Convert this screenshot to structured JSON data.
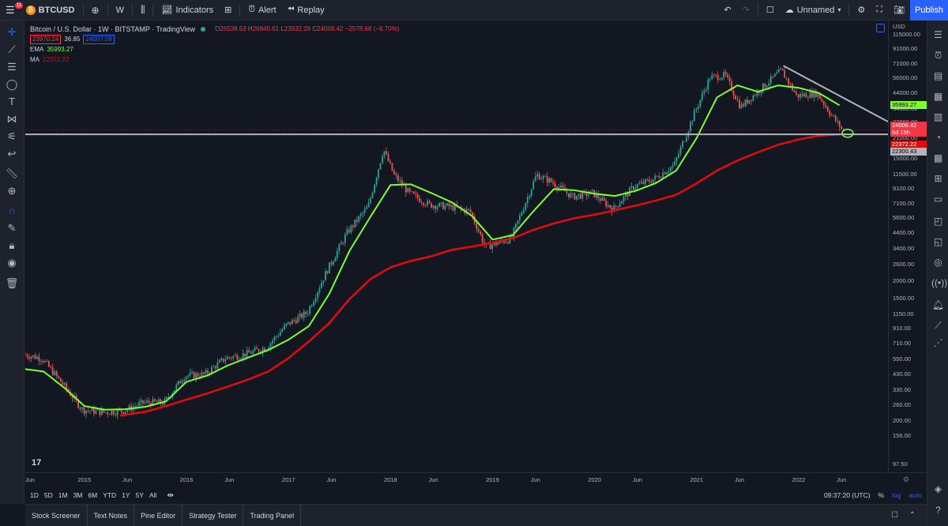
{
  "toolbar": {
    "notification_count": "11",
    "symbol": "BTCUSD",
    "interval": "W",
    "indicators": "Indicators",
    "alert": "Alert",
    "replay": "Replay",
    "layout_name": "Unnamed",
    "publish": "Publish"
  },
  "legend": {
    "title": "Bitcoin / U.S. Dollar · 1W · BITSTAMP · TradingView",
    "o_label": "O",
    "o_val": "26538.63",
    "h_label": "H",
    "h_val": "26845.61",
    "l_label": "L",
    "l_val": "23932.28",
    "c_label": "C",
    "c_val": "24006.42",
    "change": "−2578.68 (−9.70%)",
    "bid": "23970.24",
    "spread": "36.85",
    "ask": "24007.09",
    "ema_label": "EMA",
    "ema_val": "35993.27",
    "ma_label": "MA",
    "ma_val": "22372.22"
  },
  "price_scale": {
    "currency": "USD",
    "ticks": [
      "115000.00",
      "91000.00",
      "71000.00",
      "56000.00",
      "44000.00",
      "34000.00",
      "27000.00",
      "21000.00",
      "15000.00",
      "11500.00",
      "9100.00",
      "7100.00",
      "5600.00",
      "4400.00",
      "3400.00",
      "2600.00",
      "2000.00",
      "1500.00",
      "1150.00",
      "910.00",
      "710.00",
      "550.00",
      "430.00",
      "330.00",
      "260.00",
      "200.00",
      "156.00",
      "97.50"
    ],
    "ema_tag": "35993.27",
    "price_tag": "24006.42",
    "countdown": "6d 15h",
    "ma_tag": "22372.22",
    "support_tag": "22300.43"
  },
  "time_scale": {
    "ticks": [
      "Jun",
      "2015",
      "Jun",
      "2016",
      "Jun",
      "2017",
      "Jun",
      "2018",
      "Jun",
      "2019",
      "Jun",
      "2020",
      "Jun",
      "2021",
      "Jun",
      "2022",
      "Jun"
    ]
  },
  "range_bar": {
    "ranges": [
      "1D",
      "5D",
      "1M",
      "3M",
      "6M",
      "YTD",
      "1Y",
      "5Y",
      "All"
    ],
    "clock": "09:37:20 (UTC)",
    "percent": "%",
    "log": "log",
    "auto": "auto"
  },
  "bottom_tabs": [
    "Stock Screener",
    "Text Notes",
    "Pine Editor",
    "Strategy Tester",
    "Trading Panel"
  ],
  "colors": {
    "background": "#131722",
    "up": "#26a69a",
    "down": "#ef5350",
    "ema": "#7cff2f",
    "ma": "#e00b0b",
    "trendline": "#b2b5be",
    "accent": "#2962ff"
  },
  "chart_data": {
    "type": "candlestick",
    "scale": "log",
    "ylim": [
      80,
      140000
    ],
    "series": [
      {
        "name": "EMA",
        "values": [
          [
            2014.4,
            470
          ],
          [
            2014.6,
            450
          ],
          [
            2014.8,
            345
          ],
          [
            2015.0,
            255
          ],
          [
            2015.2,
            240
          ],
          [
            2015.4,
            242
          ],
          [
            2015.6,
            252
          ],
          [
            2015.8,
            275
          ],
          [
            2016.0,
            380
          ],
          [
            2016.2,
            420
          ],
          [
            2016.4,
            495
          ],
          [
            2016.6,
            565
          ],
          [
            2016.8,
            640
          ],
          [
            2017.0,
            760
          ],
          [
            2017.2,
            950
          ],
          [
            2017.4,
            1620
          ],
          [
            2017.6,
            3300
          ],
          [
            2017.8,
            5700
          ],
          [
            2018.0,
            9700
          ],
          [
            2018.2,
            9800
          ],
          [
            2018.4,
            8500
          ],
          [
            2018.6,
            7300
          ],
          [
            2018.8,
            5800
          ],
          [
            2019.0,
            3950
          ],
          [
            2019.2,
            4250
          ],
          [
            2019.4,
            6300
          ],
          [
            2019.6,
            9050
          ],
          [
            2019.8,
            8900
          ],
          [
            2020.0,
            8400
          ],
          [
            2020.2,
            8100
          ],
          [
            2020.4,
            8800
          ],
          [
            2020.6,
            10000
          ],
          [
            2020.8,
            12300
          ],
          [
            2021.0,
            21000
          ],
          [
            2021.2,
            41000
          ],
          [
            2021.4,
            50000
          ],
          [
            2021.6,
            45000
          ],
          [
            2021.8,
            50000
          ],
          [
            2022.0,
            48000
          ],
          [
            2022.2,
            44000
          ],
          [
            2022.4,
            36000
          ]
        ]
      },
      {
        "name": "MA",
        "values": [
          [
            2015.35,
            218
          ],
          [
            2015.6,
            232
          ],
          [
            2015.8,
            255
          ],
          [
            2016.0,
            283
          ],
          [
            2016.2,
            313
          ],
          [
            2016.4,
            350
          ],
          [
            2016.6,
            393
          ],
          [
            2016.8,
            450
          ],
          [
            2017.0,
            560
          ],
          [
            2017.2,
            738
          ],
          [
            2017.4,
            1000
          ],
          [
            2017.6,
            1490
          ],
          [
            2017.8,
            2050
          ],
          [
            2018.0,
            2500
          ],
          [
            2018.2,
            2780
          ],
          [
            2018.4,
            3000
          ],
          [
            2018.6,
            3330
          ],
          [
            2018.8,
            3520
          ],
          [
            2019.0,
            3750
          ],
          [
            2019.2,
            4040
          ],
          [
            2019.4,
            4630
          ],
          [
            2019.6,
            5150
          ],
          [
            2019.8,
            5600
          ],
          [
            2020.0,
            5950
          ],
          [
            2020.2,
            6400
          ],
          [
            2020.4,
            6900
          ],
          [
            2020.6,
            7500
          ],
          [
            2020.8,
            8250
          ],
          [
            2021.0,
            9950
          ],
          [
            2021.2,
            12300
          ],
          [
            2021.4,
            14500
          ],
          [
            2021.6,
            16600
          ],
          [
            2021.8,
            18800
          ],
          [
            2022.0,
            20500
          ],
          [
            2022.2,
            21800
          ],
          [
            2022.4,
            22372
          ]
        ]
      },
      {
        "name": "Price",
        "values": [
          [
            2014.4,
            600
          ],
          [
            2014.6,
            560
          ],
          [
            2014.8,
            370
          ],
          [
            2015.0,
            240
          ],
          [
            2015.2,
            230
          ],
          [
            2015.4,
            235
          ],
          [
            2015.6,
            270
          ],
          [
            2015.8,
            270
          ],
          [
            2016.0,
            420
          ],
          [
            2016.2,
            430
          ],
          [
            2016.4,
            560
          ],
          [
            2016.6,
            600
          ],
          [
            2016.8,
            670
          ],
          [
            2017.0,
            970
          ],
          [
            2017.2,
            1180
          ],
          [
            2017.4,
            2400
          ],
          [
            2017.6,
            4500
          ],
          [
            2017.8,
            6800
          ],
          [
            2017.95,
            17500
          ],
          [
            2018.05,
            11500
          ],
          [
            2018.2,
            8500
          ],
          [
            2018.4,
            7000
          ],
          [
            2018.6,
            6800
          ],
          [
            2018.8,
            6300
          ],
          [
            2018.95,
            3500
          ],
          [
            2019.2,
            4000
          ],
          [
            2019.45,
            11500
          ],
          [
            2019.6,
            10200
          ],
          [
            2019.8,
            8000
          ],
          [
            2020.0,
            8500
          ],
          [
            2020.2,
            6500
          ],
          [
            2020.4,
            9400
          ],
          [
            2020.6,
            10700
          ],
          [
            2020.8,
            13500
          ],
          [
            2021.0,
            32000
          ],
          [
            2021.15,
            57000
          ],
          [
            2021.3,
            59000
          ],
          [
            2021.45,
            35000
          ],
          [
            2021.6,
            44000
          ],
          [
            2021.85,
            64000
          ],
          [
            2022.0,
            42000
          ],
          [
            2022.2,
            44000
          ],
          [
            2022.35,
            30000
          ],
          [
            2022.45,
            24006
          ]
        ]
      }
    ]
  }
}
